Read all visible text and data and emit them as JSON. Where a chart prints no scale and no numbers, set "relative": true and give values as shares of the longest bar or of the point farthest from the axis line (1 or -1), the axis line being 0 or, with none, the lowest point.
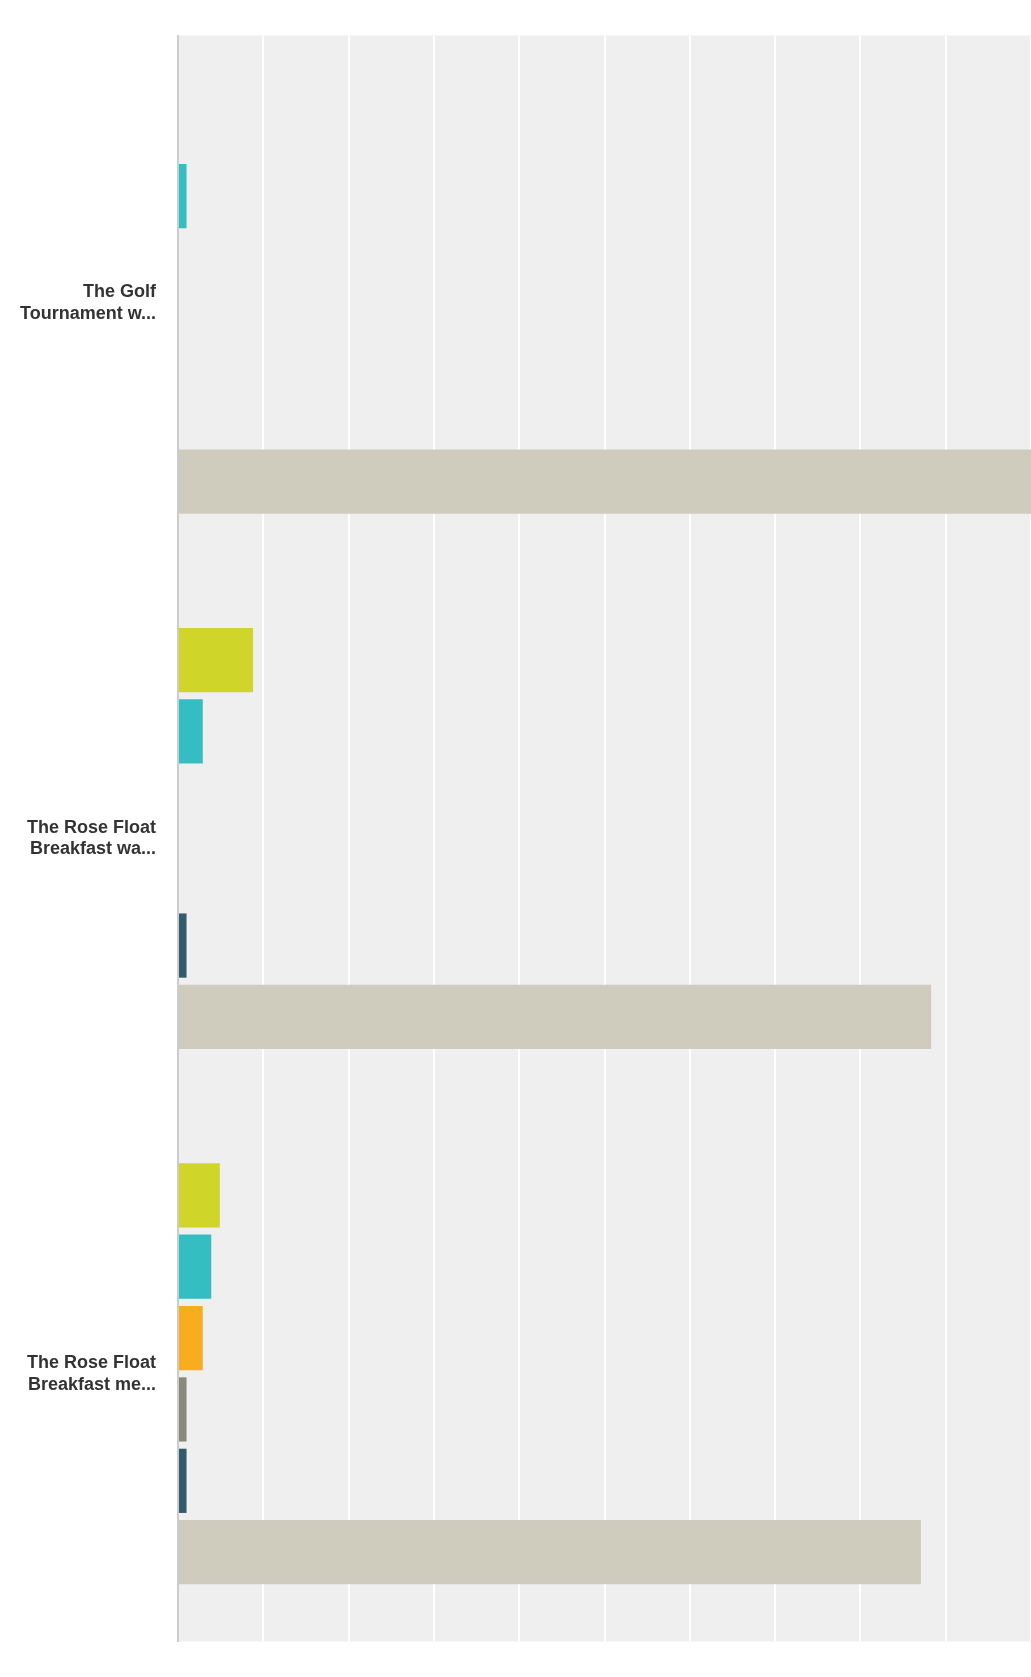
{
  "chart_data": {
    "type": "bar",
    "orientation": "horizontal",
    "relative": true,
    "grid": "x",
    "legend": false,
    "categories": [
      "The Golf Tournament w...",
      "The Rose Float Breakfast wa...",
      "The Rose Float Breakfast me..."
    ],
    "series": [
      {
        "color": "#d0d52a",
        "values": [
          null,
          0.088,
          0.049
        ]
      },
      {
        "color": "#35bec1",
        "values": [
          0.01,
          0.029,
          0.039
        ]
      },
      {
        "color": "#f7ad1d",
        "values": [
          null,
          null,
          0.029
        ]
      },
      {
        "color": "#8a8a7b",
        "values": [
          null,
          null,
          0.01
        ]
      },
      {
        "color": "#325b6b",
        "values": [
          null,
          0.01,
          0.01
        ]
      },
      {
        "color": "#cfccbd",
        "values": [
          1,
          0.883,
          0.871
        ]
      }
    ]
  }
}
